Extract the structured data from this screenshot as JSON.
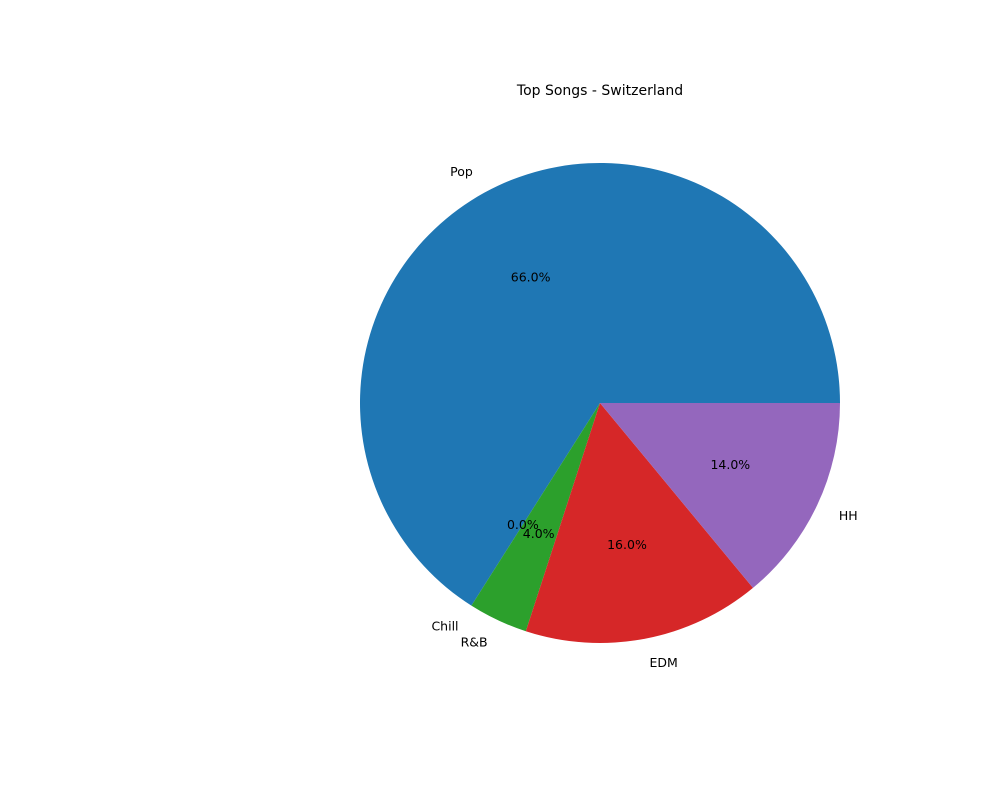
{
  "chart_data": {
    "type": "pie",
    "title": "Top Songs - Switzerland",
    "categories": [
      "Pop",
      "Chill",
      "R&B",
      "EDM",
      "HH"
    ],
    "values": [
      66.0,
      0.0,
      4.0,
      16.0,
      14.0
    ],
    "percent_labels": [
      "66.0%",
      "0.0%",
      "4.0%",
      "16.0%",
      "14.0%"
    ],
    "colors": [
      "#1f77b4",
      "#ff7f0e",
      "#2ca02c",
      "#d62728",
      "#9467bd"
    ],
    "start_angle_deg": 0,
    "direction": "counterclockwise",
    "legend": "none"
  }
}
